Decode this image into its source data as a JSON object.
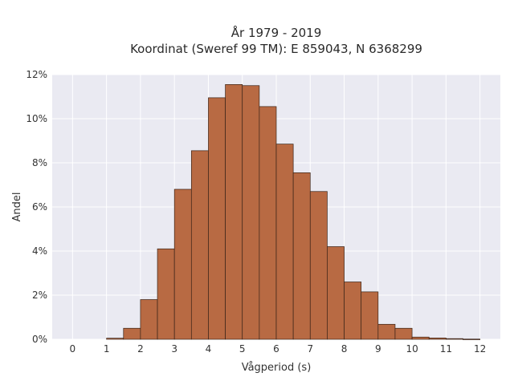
{
  "chart_data": {
    "type": "bar",
    "title_line1": "År 1979 - 2019",
    "title_line2": "Koordinat (Sweref 99 TM): E 859043, N 6368299",
    "xlabel": "Vågperiod (s)",
    "ylabel": "Andel",
    "xlim": [
      -0.6,
      12.6
    ],
    "ylim": [
      0,
      12
    ],
    "x_ticks": [
      0,
      1,
      2,
      3,
      4,
      5,
      6,
      7,
      8,
      9,
      10,
      11,
      12
    ],
    "y_ticks": [
      0,
      2,
      4,
      6,
      8,
      10,
      12
    ],
    "y_tick_labels": [
      "0%",
      "2%",
      "4%",
      "6%",
      "8%",
      "10%",
      "12%"
    ],
    "bin_width": 0.5,
    "bin_starts": [
      1.0,
      1.5,
      2.0,
      2.5,
      3.0,
      3.5,
      4.0,
      4.5,
      5.0,
      5.5,
      6.0,
      6.5,
      7.0,
      7.5,
      8.0,
      8.5,
      9.0,
      9.5,
      10.0,
      10.5,
      11.0,
      11.5
    ],
    "values": [
      0.05,
      0.5,
      1.8,
      4.1,
      6.8,
      8.55,
      10.95,
      11.55,
      11.5,
      10.55,
      8.85,
      7.55,
      6.7,
      4.2,
      2.6,
      2.15,
      0.68,
      0.5,
      0.1,
      0.06,
      0.03,
      0.01
    ],
    "grid": true,
    "colors": {
      "bar_fill": "#b86a43",
      "bar_stroke": "#3a2418",
      "plot_bg": "#eaeaf2",
      "grid": "#ffffff"
    }
  }
}
